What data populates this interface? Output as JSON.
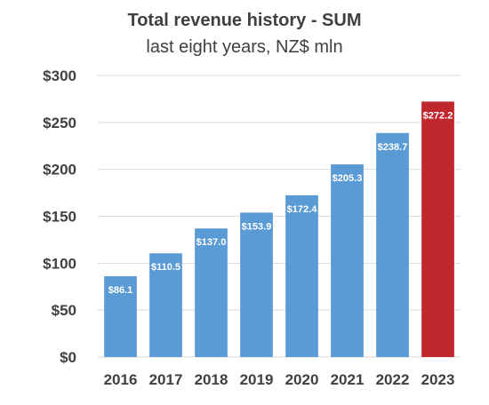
{
  "chart_data": {
    "type": "bar",
    "title": "Total revenue history - SUM",
    "subtitle": "last eight years, NZ$ mln",
    "categories": [
      "2016",
      "2017",
      "2018",
      "2019",
      "2020",
      "2021",
      "2022",
      "2023"
    ],
    "values": [
      86.1,
      110.5,
      137.0,
      153.9,
      172.4,
      205.3,
      238.7,
      272.2
    ],
    "data_labels": [
      "$86.1",
      "$110.5",
      "$137.0",
      "$153.9",
      "$172.4",
      "$205.3",
      "$238.7",
      "$272.2"
    ],
    "ylim": [
      0,
      300
    ],
    "yticks": [
      0,
      50,
      100,
      150,
      200,
      250,
      300
    ],
    "ytick_labels": [
      "$0",
      "$50",
      "$100",
      "$150",
      "$200",
      "$250",
      "$300"
    ],
    "grid": true,
    "legend": "none",
    "colors": {
      "bar": "#5B9BD5",
      "highlight": "#C0282D",
      "grid": "#D9D9D9",
      "text": "#404040",
      "label": "#FFFFFF"
    }
  }
}
